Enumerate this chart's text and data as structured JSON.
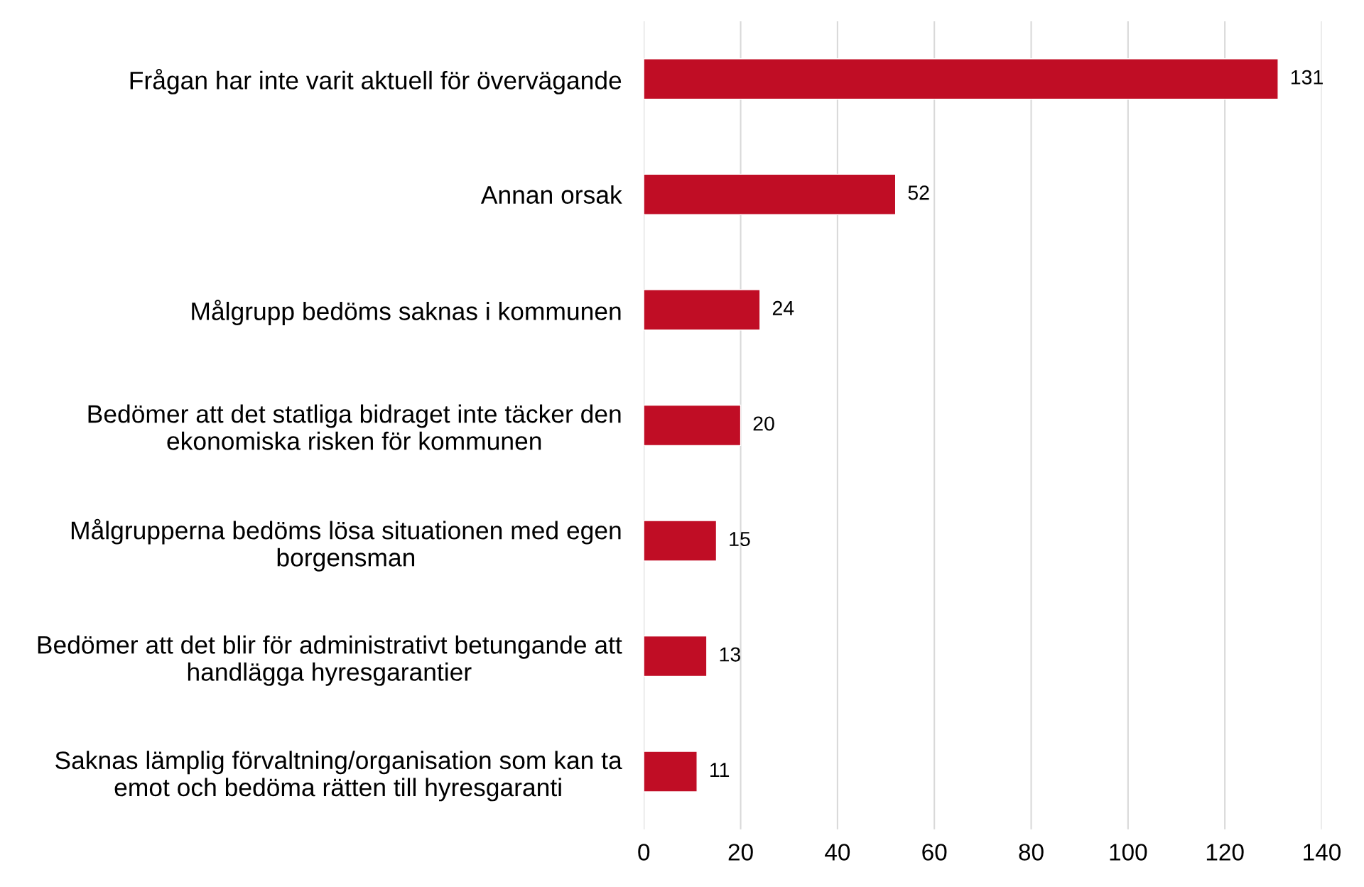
{
  "chart_data": {
    "type": "bar",
    "orientation": "horizontal",
    "categories": [
      "Frågan har inte varit aktuell för övervägande",
      "Annan orsak",
      "Målgrupp bedöms saknas i kommunen",
      "Bedömer att det statliga bidraget inte täcker den\nekonomiska risken för kommunen",
      "Målgrupperna bedöms lösa situationen med egen\nborgensman",
      "Bedömer att det blir för administrativt betungande att\nhandlägga hyresgarantier",
      "Saknas lämplig förvaltning/organisation som kan ta\nemot och bedöma rätten till hyresgaranti"
    ],
    "values": [
      131,
      52,
      24,
      20,
      15,
      13,
      11
    ],
    "color": "#c00d25",
    "xlim": [
      0,
      140
    ],
    "xticks": [
      0,
      20,
      40,
      60,
      80,
      100,
      120,
      140
    ],
    "grid": "x",
    "data_labels": true
  }
}
